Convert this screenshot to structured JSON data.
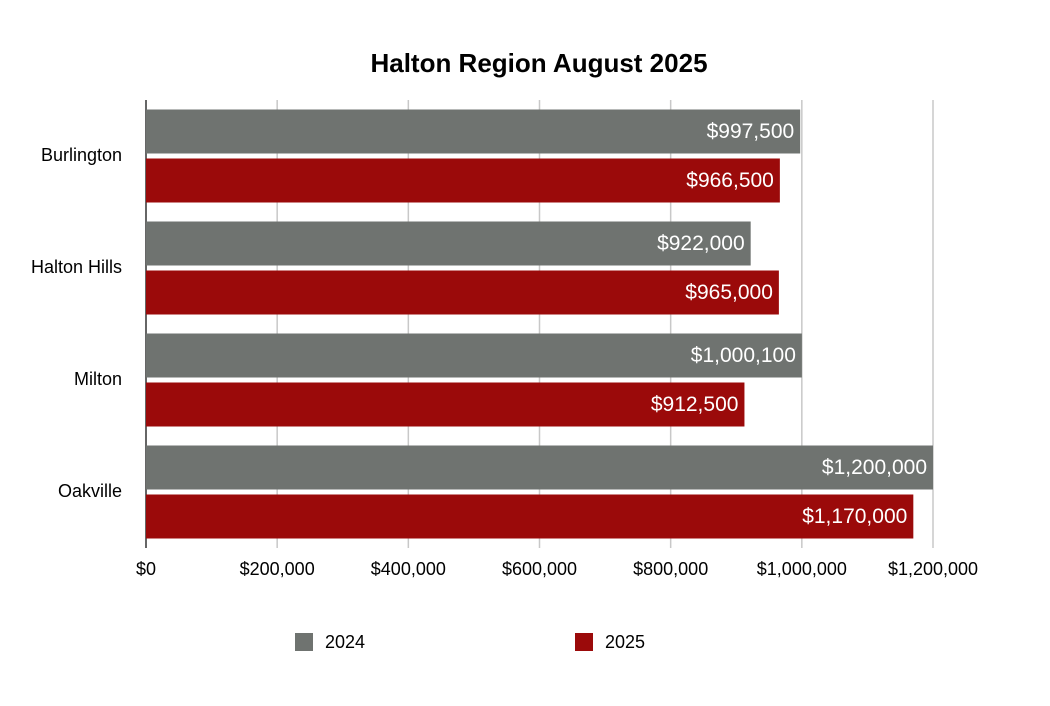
{
  "chart_data": {
    "type": "hbar",
    "title": "Halton Region August 2025",
    "categories": [
      "Burlington",
      "Halton Hills",
      "Milton",
      "Oakville"
    ],
    "series": [
      {
        "name": "2024",
        "color": "#6f7370",
        "values": [
          997500,
          922000,
          1000100,
          1200000
        ],
        "value_labels": [
          "$997,500",
          "$922,000",
          "$1,000,100",
          "$1,200,000"
        ]
      },
      {
        "name": "2025",
        "color": "#9b0a0a",
        "values": [
          966500,
          965000,
          912500,
          1170000
        ],
        "value_labels": [
          "$966,500",
          "$965,000",
          "$912,500",
          "$1,170,000"
        ]
      }
    ],
    "xlim": [
      0,
      1200000
    ],
    "xticks": [
      {
        "value": 0,
        "label": "$0"
      },
      {
        "value": 200000,
        "label": "$200,000"
      },
      {
        "value": 400000,
        "label": "$400,000"
      },
      {
        "value": 600000,
        "label": "$600,000"
      },
      {
        "value": 800000,
        "label": "$800,000"
      },
      {
        "value": 1000000,
        "label": "$1,000,000"
      },
      {
        "value": 1200000,
        "label": "$1,200,000"
      }
    ],
    "grid": true,
    "legend": "bottom"
  }
}
